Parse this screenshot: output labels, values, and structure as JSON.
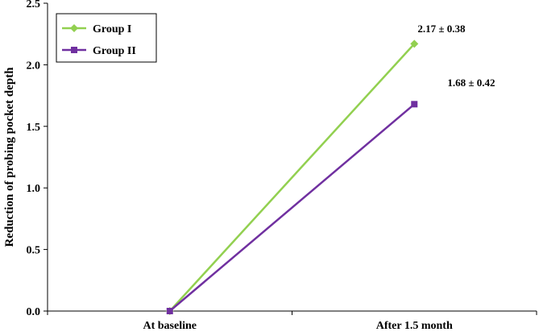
{
  "chart_data": {
    "type": "line",
    "title": "",
    "xlabel": "",
    "ylabel": "Reduction of probing pocket depth",
    "categories": [
      "At baseline",
      "After 1.5 month"
    ],
    "ylim": [
      0,
      2.5
    ],
    "yticks": [
      "0.0",
      "0.5",
      "1.0",
      "1.5",
      "2.0",
      "2.5"
    ],
    "grid": false,
    "legend_position": "top-left",
    "series": [
      {
        "name": "Group I",
        "values": [
          0,
          2.17
        ],
        "color": "#92d050",
        "marker": "diamond"
      },
      {
        "name": "Group II",
        "values": [
          0,
          1.68
        ],
        "color": "#7030a0",
        "marker": "square"
      }
    ],
    "annotations": [
      "2.17 ± 0.38",
      "1.68 ± 0.42"
    ]
  }
}
